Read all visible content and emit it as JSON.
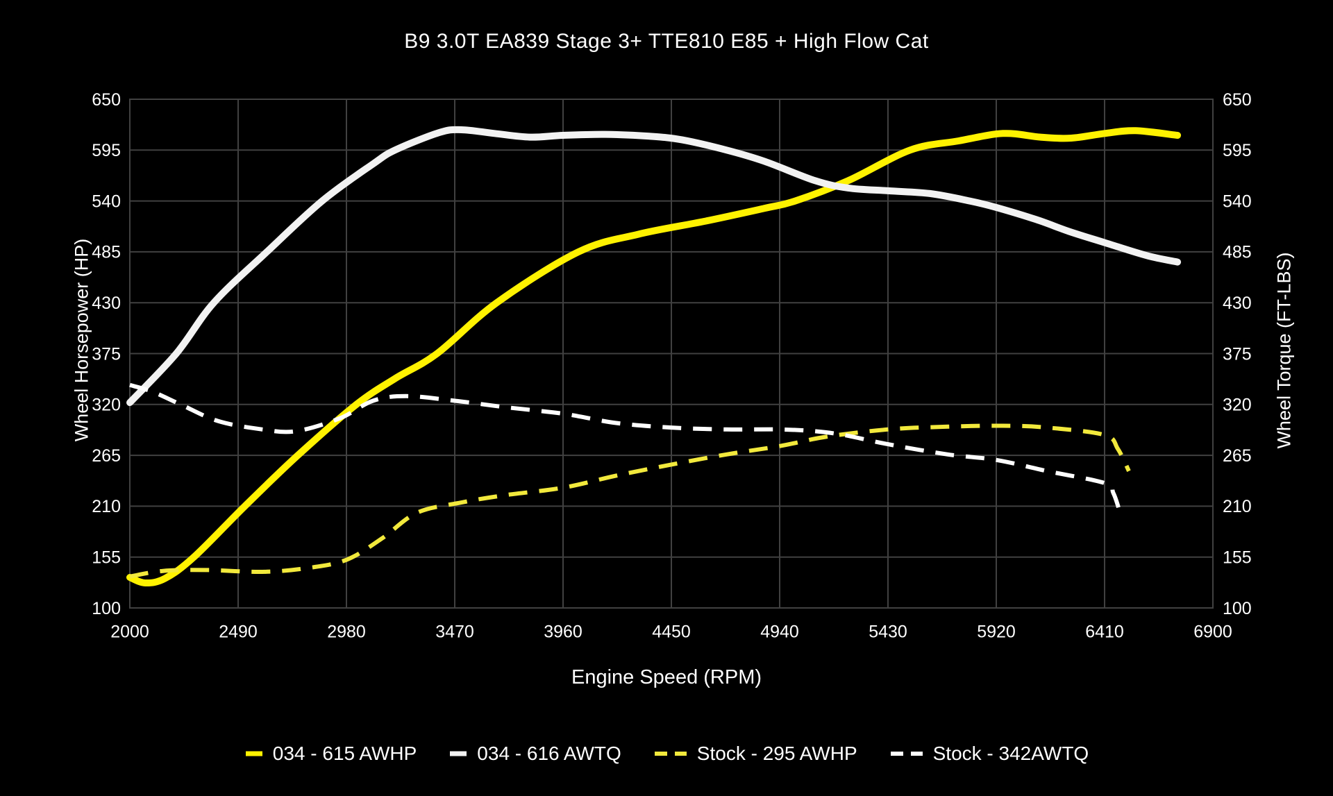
{
  "title": "B9 3.0T EA839 Stage 3+ TTE810 E85 + High Flow Cat",
  "background_color": "#000000",
  "grid_color": "#414141",
  "text_color": "#ffffff",
  "chart_data": {
    "type": "line",
    "title": "B9 3.0T EA839 Stage 3+ TTE810 E85 + High Flow Cat",
    "xlabel": "Engine Speed (RPM)",
    "ylabel_left": "Wheel Horsepower (HP)",
    "ylabel_right": "Wheel Torque (FT-LBS)",
    "xlim": [
      2000,
      6900
    ],
    "ylim": [
      100,
      650
    ],
    "x_ticks": [
      2000,
      2490,
      2980,
      3470,
      3960,
      4450,
      4940,
      5430,
      5920,
      6410,
      6900
    ],
    "y_ticks": [
      100,
      155,
      210,
      265,
      320,
      375,
      430,
      485,
      540,
      595,
      650
    ],
    "grid": true,
    "legend_position": "bottom",
    "series": [
      {
        "name": "034 - 615 AWHP",
        "color": "#FFF200",
        "style": "solid",
        "axis": "left",
        "peak": 615,
        "points": [
          [
            2000,
            133
          ],
          [
            2070,
            127
          ],
          [
            2160,
            132
          ],
          [
            2290,
            155
          ],
          [
            2520,
            210
          ],
          [
            2760,
            265
          ],
          [
            3025,
            320
          ],
          [
            3200,
            348
          ],
          [
            3390,
            375
          ],
          [
            3660,
            430
          ],
          [
            4030,
            485
          ],
          [
            4300,
            504
          ],
          [
            4600,
            518
          ],
          [
            4870,
            532
          ],
          [
            5010,
            540
          ],
          [
            5250,
            562
          ],
          [
            5530,
            595
          ],
          [
            5750,
            605
          ],
          [
            5950,
            613
          ],
          [
            6120,
            609
          ],
          [
            6260,
            608
          ],
          [
            6410,
            613
          ],
          [
            6550,
            616
          ],
          [
            6740,
            611
          ]
        ]
      },
      {
        "name": "034 - 616 AWTQ",
        "color": "#F2F2F2",
        "style": "solid",
        "axis": "right",
        "peak": 616,
        "points": [
          [
            2000,
            322
          ],
          [
            2210,
            375
          ],
          [
            2380,
            430
          ],
          [
            2620,
            485
          ],
          [
            2870,
            540
          ],
          [
            3100,
            580
          ],
          [
            3200,
            595
          ],
          [
            3400,
            614
          ],
          [
            3500,
            617
          ],
          [
            3650,
            613
          ],
          [
            3810,
            609
          ],
          [
            3960,
            611
          ],
          [
            4150,
            612
          ],
          [
            4350,
            610
          ],
          [
            4500,
            606
          ],
          [
            4700,
            595
          ],
          [
            4870,
            583
          ],
          [
            5100,
            562
          ],
          [
            5250,
            554
          ],
          [
            5430,
            551
          ],
          [
            5620,
            548
          ],
          [
            5800,
            540
          ],
          [
            5920,
            533
          ],
          [
            6100,
            520
          ],
          [
            6250,
            507
          ],
          [
            6410,
            495
          ],
          [
            6600,
            481
          ],
          [
            6740,
            474
          ]
        ]
      },
      {
        "name": "Stock - 295 AWHP",
        "color": "#F2E93C",
        "style": "dashed",
        "axis": "left",
        "peak": 295,
        "points": [
          [
            2000,
            134
          ],
          [
            2150,
            140
          ],
          [
            2350,
            141
          ],
          [
            2600,
            139
          ],
          [
            2800,
            143
          ],
          [
            2980,
            152
          ],
          [
            3140,
            175
          ],
          [
            3300,
            203
          ],
          [
            3500,
            214
          ],
          [
            3700,
            222
          ],
          [
            3960,
            230
          ],
          [
            4200,
            243
          ],
          [
            4450,
            255
          ],
          [
            4700,
            266
          ],
          [
            4940,
            275
          ],
          [
            5150,
            285
          ],
          [
            5430,
            293
          ],
          [
            5700,
            296
          ],
          [
            5950,
            297
          ],
          [
            6150,
            295
          ],
          [
            6410,
            287
          ],
          [
            6470,
            272
          ],
          [
            6520,
            248
          ]
        ]
      },
      {
        "name": "Stock - 342AWTQ",
        "color": "#FFFFFF",
        "style": "dashed",
        "axis": "right",
        "peak": 342,
        "points": [
          [
            2000,
            341
          ],
          [
            2100,
            334
          ],
          [
            2230,
            320
          ],
          [
            2400,
            302
          ],
          [
            2600,
            293
          ],
          [
            2750,
            291
          ],
          [
            2950,
            305
          ],
          [
            3100,
            324
          ],
          [
            3250,
            329
          ],
          [
            3470,
            324
          ],
          [
            3700,
            317
          ],
          [
            3960,
            310
          ],
          [
            4200,
            300
          ],
          [
            4450,
            295
          ],
          [
            4700,
            293
          ],
          [
            4940,
            293
          ],
          [
            5100,
            291
          ],
          [
            5230,
            287
          ],
          [
            5430,
            277
          ],
          [
            5700,
            266
          ],
          [
            5920,
            260
          ],
          [
            6150,
            248
          ],
          [
            6410,
            235
          ],
          [
            6450,
            224
          ],
          [
            6480,
            203
          ]
        ]
      }
    ]
  }
}
